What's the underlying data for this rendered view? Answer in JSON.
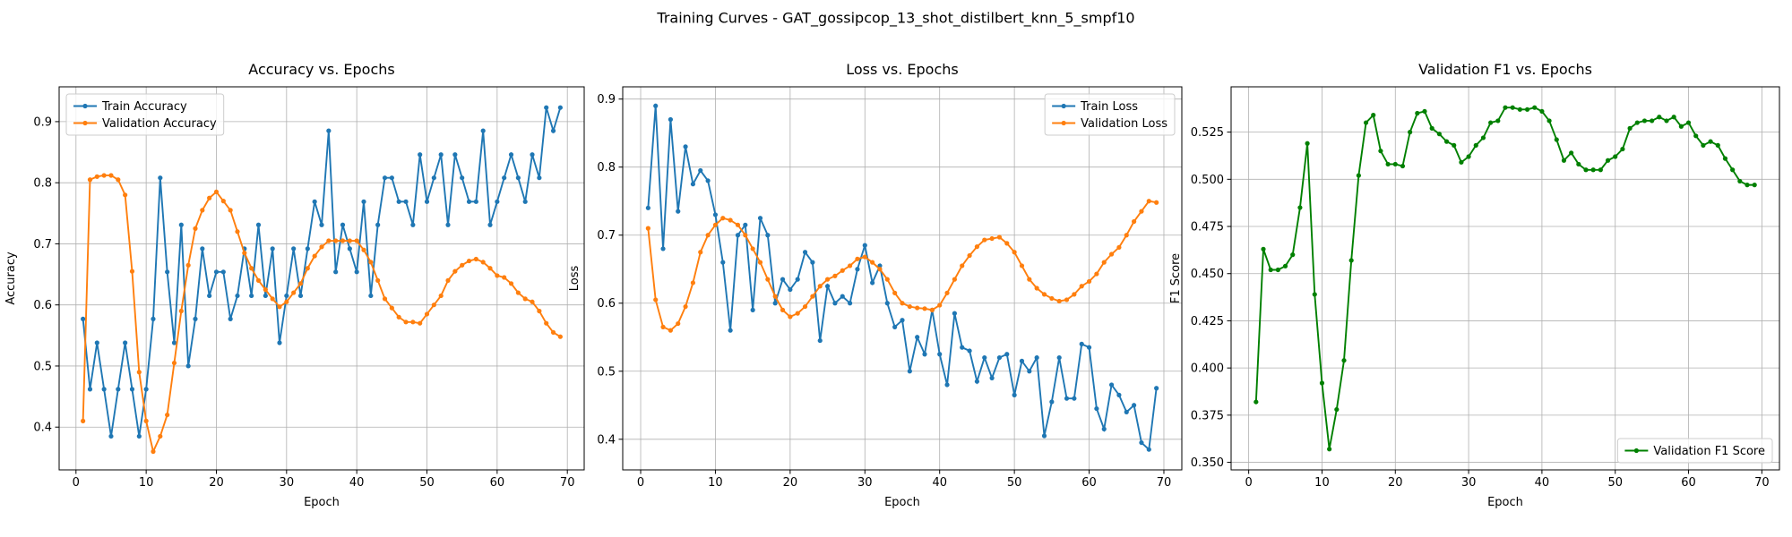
{
  "title": "Training Curves - GAT_gossipcop_13_shot_distilbert_knn_5_smpf10",
  "chart_data": [
    {
      "type": "line",
      "title": "Accuracy vs. Epochs",
      "xlabel": "Epoch",
      "ylabel": "Accuracy",
      "grid": true,
      "legend": "upper left",
      "xlim": [
        -2.4,
        72.4
      ],
      "xticks": [
        0,
        10,
        20,
        30,
        40,
        50,
        60,
        70
      ],
      "ylim": [
        0.33,
        0.957
      ],
      "yticks": [
        0.4,
        0.5,
        0.6,
        0.7,
        0.8,
        0.9
      ],
      "x": [
        1,
        2,
        3,
        4,
        5,
        6,
        7,
        8,
        9,
        10,
        11,
        12,
        13,
        14,
        15,
        16,
        17,
        18,
        19,
        20,
        21,
        22,
        23,
        24,
        25,
        26,
        27,
        28,
        29,
        30,
        31,
        32,
        33,
        34,
        35,
        36,
        37,
        38,
        39,
        40,
        41,
        42,
        43,
        44,
        45,
        46,
        47,
        48,
        49,
        50,
        51,
        52,
        53,
        54,
        55,
        56,
        57,
        58,
        59,
        60,
        61,
        62,
        63,
        64,
        65,
        66,
        67,
        68,
        69
      ],
      "series": [
        {
          "name": "Train Accuracy",
          "color": "#1f77b4",
          "values": [
            0.577,
            0.462,
            0.538,
            0.462,
            0.385,
            0.462,
            0.538,
            0.462,
            0.385,
            0.462,
            0.577,
            0.808,
            0.654,
            0.538,
            0.731,
            0.5,
            0.577,
            0.692,
            0.615,
            0.654,
            0.654,
            0.577,
            0.615,
            0.692,
            0.615,
            0.731,
            0.615,
            0.692,
            0.538,
            0.615,
            0.692,
            0.615,
            0.692,
            0.769,
            0.731,
            0.885,
            0.654,
            0.731,
            0.692,
            0.654,
            0.769,
            0.615,
            0.731,
            0.808,
            0.808,
            0.769,
            0.769,
            0.731,
            0.846,
            0.769,
            0.808,
            0.846,
            0.731,
            0.846,
            0.808,
            0.769,
            0.769,
            0.885,
            0.731,
            0.769,
            0.808,
            0.846,
            0.808,
            0.769,
            0.846,
            0.808,
            0.923,
            0.885,
            0.923
          ]
        },
        {
          "name": "Validation Accuracy",
          "color": "#ff7f0e",
          "values": [
            0.41,
            0.805,
            0.81,
            0.812,
            0.812,
            0.805,
            0.78,
            0.655,
            0.49,
            0.41,
            0.36,
            0.385,
            0.42,
            0.505,
            0.59,
            0.665,
            0.725,
            0.755,
            0.775,
            0.785,
            0.77,
            0.755,
            0.72,
            0.685,
            0.66,
            0.64,
            0.625,
            0.61,
            0.597,
            0.605,
            0.62,
            0.635,
            0.66,
            0.68,
            0.695,
            0.705,
            0.705,
            0.705,
            0.705,
            0.705,
            0.69,
            0.67,
            0.64,
            0.61,
            0.595,
            0.58,
            0.572,
            0.572,
            0.57,
            0.585,
            0.6,
            0.615,
            0.64,
            0.655,
            0.665,
            0.672,
            0.675,
            0.67,
            0.66,
            0.648,
            0.645,
            0.635,
            0.62,
            0.61,
            0.605,
            0.59,
            0.57,
            0.555,
            0.548
          ]
        }
      ]
    },
    {
      "type": "line",
      "title": "Loss vs. Epochs",
      "xlabel": "Epoch",
      "ylabel": "Loss",
      "grid": true,
      "legend": "upper right",
      "xlim": [
        -2.4,
        72.4
      ],
      "xticks": [
        0,
        10,
        20,
        30,
        40,
        50,
        60,
        70
      ],
      "ylim": [
        0.355,
        0.918
      ],
      "yticks": [
        0.4,
        0.5,
        0.6,
        0.7,
        0.8,
        0.9
      ],
      "x": [
        1,
        2,
        3,
        4,
        5,
        6,
        7,
        8,
        9,
        10,
        11,
        12,
        13,
        14,
        15,
        16,
        17,
        18,
        19,
        20,
        21,
        22,
        23,
        24,
        25,
        26,
        27,
        28,
        29,
        30,
        31,
        32,
        33,
        34,
        35,
        36,
        37,
        38,
        39,
        40,
        41,
        42,
        43,
        44,
        45,
        46,
        47,
        48,
        49,
        50,
        51,
        52,
        53,
        54,
        55,
        56,
        57,
        58,
        59,
        60,
        61,
        62,
        63,
        64,
        65,
        66,
        67,
        68,
        69
      ],
      "series": [
        {
          "name": "Train Loss",
          "color": "#1f77b4",
          "values": [
            0.74,
            0.89,
            0.68,
            0.87,
            0.735,
            0.83,
            0.775,
            0.795,
            0.78,
            0.73,
            0.66,
            0.56,
            0.7,
            0.715,
            0.59,
            0.725,
            0.7,
            0.6,
            0.635,
            0.62,
            0.635,
            0.675,
            0.66,
            0.545,
            0.625,
            0.6,
            0.61,
            0.6,
            0.65,
            0.685,
            0.63,
            0.655,
            0.6,
            0.565,
            0.575,
            0.5,
            0.55,
            0.525,
            0.59,
            0.525,
            0.48,
            0.585,
            0.535,
            0.53,
            0.485,
            0.52,
            0.49,
            0.52,
            0.525,
            0.465,
            0.515,
            0.5,
            0.52,
            0.405,
            0.455,
            0.52,
            0.46,
            0.46,
            0.54,
            0.535,
            0.445,
            0.415,
            0.48,
            0.465,
            0.44,
            0.45,
            0.395,
            0.385,
            0.475
          ]
        },
        {
          "name": "Validation Loss",
          "color": "#ff7f0e",
          "values": [
            0.71,
            0.605,
            0.565,
            0.56,
            0.57,
            0.595,
            0.63,
            0.675,
            0.7,
            0.715,
            0.725,
            0.722,
            0.715,
            0.7,
            0.68,
            0.66,
            0.635,
            0.61,
            0.59,
            0.58,
            0.585,
            0.595,
            0.61,
            0.625,
            0.635,
            0.64,
            0.648,
            0.655,
            0.665,
            0.668,
            0.66,
            0.65,
            0.635,
            0.615,
            0.6,
            0.595,
            0.593,
            0.592,
            0.59,
            0.597,
            0.615,
            0.635,
            0.655,
            0.67,
            0.683,
            0.693,
            0.695,
            0.697,
            0.688,
            0.675,
            0.655,
            0.635,
            0.622,
            0.613,
            0.607,
            0.603,
            0.605,
            0.613,
            0.625,
            0.632,
            0.643,
            0.66,
            0.672,
            0.682,
            0.7,
            0.72,
            0.735,
            0.75,
            0.748
          ]
        }
      ]
    },
    {
      "type": "line",
      "title": "Validation F1 vs. Epochs",
      "xlabel": "Epoch",
      "ylabel": "F1 Score",
      "grid": true,
      "legend": "lower right",
      "xlim": [
        -2.4,
        72.4
      ],
      "xticks": [
        0,
        10,
        20,
        30,
        40,
        50,
        60,
        70
      ],
      "ylim": [
        0.346,
        0.549
      ],
      "yticks": [
        {
          "value": 0.35,
          "label": "0.350"
        },
        0.375,
        {
          "value": 0.4,
          "label": "0.400"
        },
        0.425,
        {
          "value": 0.45,
          "label": "0.450"
        },
        0.475,
        {
          "value": 0.5,
          "label": "0.500"
        },
        0.525
      ],
      "x": [
        1,
        2,
        3,
        4,
        5,
        6,
        7,
        8,
        9,
        10,
        11,
        12,
        13,
        14,
        15,
        16,
        17,
        18,
        19,
        20,
        21,
        22,
        23,
        24,
        25,
        26,
        27,
        28,
        29,
        30,
        31,
        32,
        33,
        34,
        35,
        36,
        37,
        38,
        39,
        40,
        41,
        42,
        43,
        44,
        45,
        46,
        47,
        48,
        49,
        50,
        51,
        52,
        53,
        54,
        55,
        56,
        57,
        58,
        59,
        60,
        61,
        62,
        63,
        64,
        65,
        66,
        67,
        68,
        69
      ],
      "series": [
        {
          "name": "Validation F1 Score",
          "color": "#008000",
          "values": [
            0.382,
            0.463,
            0.452,
            0.452,
            0.454,
            0.46,
            0.485,
            0.519,
            0.439,
            0.392,
            0.357,
            0.378,
            0.404,
            0.457,
            0.502,
            0.53,
            0.534,
            0.515,
            0.508,
            0.508,
            0.507,
            0.525,
            0.535,
            0.536,
            0.527,
            0.524,
            0.52,
            0.518,
            0.509,
            0.512,
            0.518,
            0.522,
            0.53,
            0.531,
            0.538,
            0.538,
            0.537,
            0.537,
            0.538,
            0.536,
            0.531,
            0.521,
            0.51,
            0.514,
            0.508,
            0.505,
            0.505,
            0.505,
            0.51,
            0.512,
            0.516,
            0.527,
            0.53,
            0.531,
            0.531,
            0.533,
            0.531,
            0.533,
            0.528,
            0.53,
            0.523,
            0.518,
            0.52,
            0.518,
            0.511,
            0.505,
            0.499,
            0.497,
            0.497
          ]
        }
      ]
    }
  ]
}
